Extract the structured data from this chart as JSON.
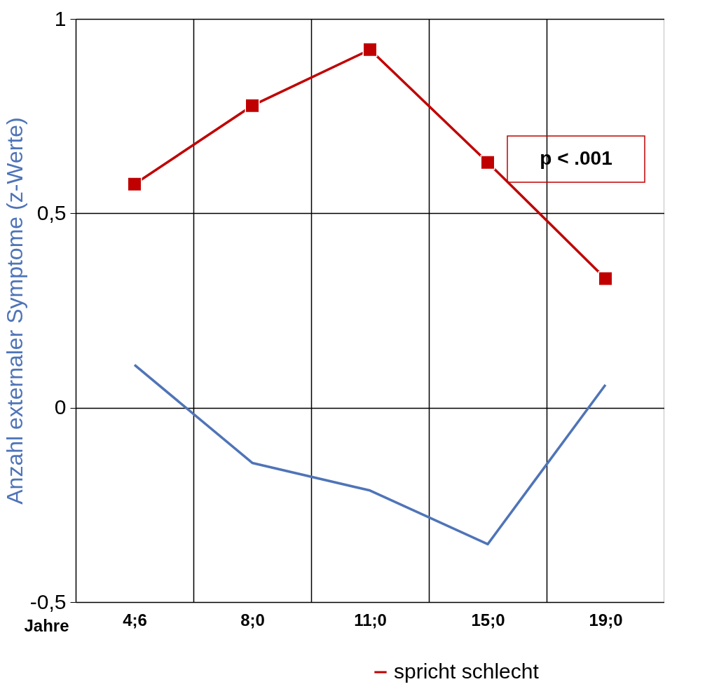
{
  "chart_data": {
    "type": "line",
    "xlabel": "Jahre",
    "ylabel": "Anzahl externaler Symptome (z-Werte)",
    "categories": [
      "4;6",
      "8;0",
      "11;0",
      "15;0",
      "19;0"
    ],
    "series": [
      {
        "name": "spricht schlecht",
        "color": "#c00000",
        "marker": "square",
        "values": [
          0.575,
          0.777,
          0.921,
          0.631,
          0.332
        ]
      },
      {
        "color": "#4f74b8",
        "marker": "none",
        "values": [
          0.11,
          -0.142,
          -0.213,
          -0.351,
          0.059
        ]
      }
    ],
    "ylim": [
      -0.5,
      1
    ],
    "yticks": [
      {
        "value": -0.5,
        "label": "-0,5"
      },
      0,
      {
        "value": 0.5,
        "label": "0,5"
      },
      1
    ],
    "grid": true,
    "legend": "bottom right",
    "annotations": [
      "p < .001"
    ]
  }
}
